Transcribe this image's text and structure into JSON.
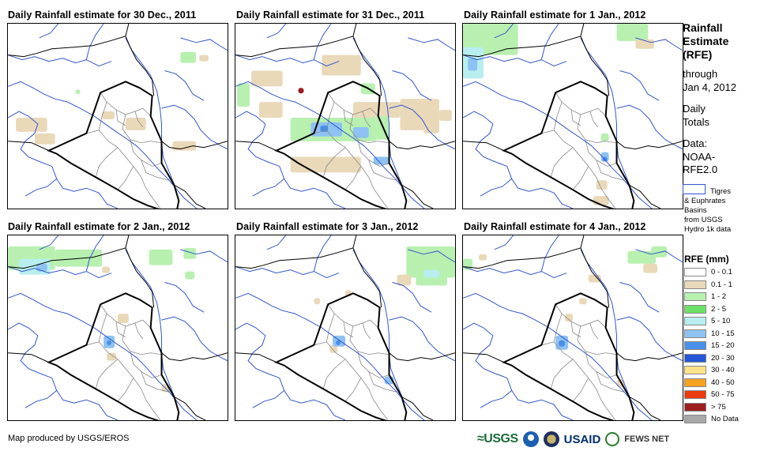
{
  "panels": [
    {
      "title": "Daily Rainfall estimate for 30 Dec., 2011"
    },
    {
      "title": "Daily Rainfall estimate for 31 Dec., 2011"
    },
    {
      "title": "Daily Rainfall estimate for 1 Jan., 2012"
    },
    {
      "title": "Daily Rainfall estimate for 2 Jan., 2012"
    },
    {
      "title": "Daily Rainfall estimate for 3 Jan., 2012"
    },
    {
      "title": "Daily Rainfall estimate for 4 Jan., 2012"
    }
  ],
  "sidebar": {
    "title_lines": [
      "Rainfall",
      "Estimate",
      "(RFE)"
    ],
    "through": "through",
    "through_date": "Jan 4, 2012",
    "totals_lines": [
      "Daily",
      "Totals"
    ],
    "data_lines": [
      "Data:",
      "NOAA-",
      "RFE2.0"
    ],
    "basin_legend": {
      "line1": "Tigres",
      "line2": "& Euphrates",
      "line3": "Basins",
      "line4": "from USGS",
      "line5": "Hydro 1k data",
      "color": "#3355cc"
    }
  },
  "legend": {
    "title": "RFE (mm)",
    "items": [
      {
        "label": "0 - 0.1",
        "color": "#ffffff"
      },
      {
        "label": "0.1 - 1",
        "color": "#e9d9b9"
      },
      {
        "label": "1 - 2",
        "color": "#b8f0b0"
      },
      {
        "label": "2 - 5",
        "color": "#6ee06a"
      },
      {
        "label": "5 - 10",
        "color": "#b8eef0"
      },
      {
        "label": "10 - 15",
        "color": "#8ec2f2"
      },
      {
        "label": "15 - 20",
        "color": "#4a90e8"
      },
      {
        "label": "20 - 30",
        "color": "#2555d8"
      },
      {
        "label": "30 - 40",
        "color": "#ffe38a"
      },
      {
        "label": "40 - 50",
        "color": "#f5a320"
      },
      {
        "label": "50 - 75",
        "color": "#ea3a10"
      },
      {
        "label": "> 75",
        "color": "#9c1e1e"
      },
      {
        "label": "No Data",
        "color": "#a8a8a8"
      }
    ]
  },
  "footer": {
    "credit": "Map produced by USGS/EROS",
    "logos": {
      "usgs": "≈USGS",
      "usaid": "USAID",
      "fews": "FEWS NET"
    }
  },
  "map_colors": {
    "country_border": "#000000",
    "province_border": "#888888",
    "rivers": "#3355cc"
  }
}
